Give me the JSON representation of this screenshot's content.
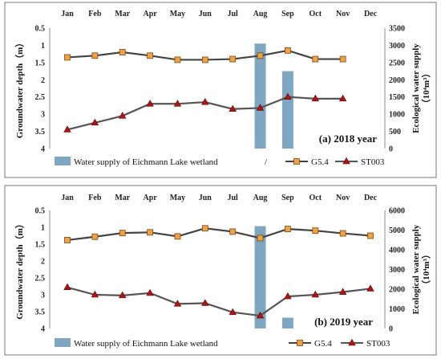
{
  "chart_data": [
    {
      "type": "line",
      "title": "(a) 2018 year",
      "categories": [
        "Jan",
        "Feb",
        "Mar",
        "Apr",
        "May",
        "Jun",
        "Jul",
        "Aug",
        "Sep",
        "Oct",
        "Nov",
        "Dec"
      ],
      "ylabel": "Groundwater depth（m）",
      "ylim": [
        4,
        0.5
      ],
      "yticks": [
        "0.5",
        "1",
        "1.5",
        "2",
        "2.5",
        "3",
        "3.5",
        "4"
      ],
      "y2label_line1": "Ecological water supply",
      "y2label_line2": "（10⁴m³）",
      "y2lim": [
        0,
        3500
      ],
      "y2ticks": [
        "0",
        "500",
        "1000",
        "1500",
        "2000",
        "2500",
        "3000",
        "3500"
      ],
      "series": [
        {
          "name": "G5.4",
          "kind": "line",
          "marker": "square",
          "color": "#444444",
          "marker_color": "#f0a045",
          "values": [
            1.35,
            1.3,
            1.2,
            1.3,
            1.42,
            1.42,
            1.4,
            1.3,
            1.15,
            1.4,
            1.4,
            null
          ]
        },
        {
          "name": "ST003",
          "kind": "line",
          "marker": "triangle",
          "color": "#555555",
          "marker_color": "#b01515",
          "values": [
            3.45,
            3.25,
            3.05,
            2.7,
            2.7,
            2.65,
            2.85,
            2.82,
            2.5,
            2.55,
            2.55,
            null
          ]
        },
        {
          "name": "Water supply of Eichmann Lake wetland",
          "kind": "bar",
          "axis": "y2",
          "color": "#7fa7c2",
          "values": [
            null,
            null,
            null,
            null,
            null,
            null,
            null,
            3050,
            2250,
            null,
            null,
            null
          ]
        }
      ],
      "legend": [
        "Water supply of Eichmann Lake wetland",
        "G5.4",
        "ST003"
      ],
      "legend_extra_mark": "/",
      "legend_position": "bottom"
    },
    {
      "type": "line",
      "title": "(b) 2019 year",
      "categories": [
        "Jan",
        "Feb",
        "Mar",
        "Apr",
        "May",
        "Jun",
        "Jul",
        "Aug",
        "Sep",
        "Oct",
        "Nov",
        "Dec"
      ],
      "ylabel": "Groundwater depth（m）",
      "ylim": [
        4,
        0.5
      ],
      "yticks": [
        "0.5",
        "1",
        "1.5",
        "2",
        "2.5",
        "3",
        "3.5",
        "4"
      ],
      "y2label_line1": "Ecological water supply",
      "y2label_line2": "（10⁴m³）",
      "y2lim": [
        0,
        6000
      ],
      "y2ticks": [
        "0",
        "1000",
        "2000",
        "3000",
        "4000",
        "5000",
        "6000"
      ],
      "series": [
        {
          "name": "G5.4",
          "kind": "line",
          "marker": "square",
          "color": "#444444",
          "marker_color": "#f0a045",
          "values": [
            1.38,
            1.28,
            1.17,
            1.15,
            1.27,
            1.03,
            1.13,
            1.32,
            1.05,
            1.1,
            1.18,
            1.25
          ]
        },
        {
          "name": "ST003",
          "kind": "line",
          "marker": "triangle",
          "color": "#555555",
          "marker_color": "#b01515",
          "values": [
            2.78,
            3.0,
            3.02,
            2.95,
            3.27,
            3.25,
            3.52,
            3.62,
            3.05,
            3.0,
            2.92,
            2.82
          ]
        },
        {
          "name": "Water supply of Eichmann Lake wetland",
          "kind": "bar",
          "axis": "y2",
          "color": "#7fa7c2",
          "values": [
            null,
            null,
            null,
            null,
            null,
            null,
            null,
            5200,
            550,
            null,
            null,
            null
          ]
        }
      ],
      "legend": [
        "Water supply of Eichmann Lake wetland",
        "G5.4",
        "ST003"
      ],
      "legend_position": "bottom"
    }
  ]
}
